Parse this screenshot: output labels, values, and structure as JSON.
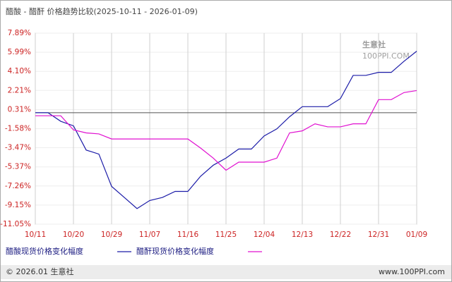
{
  "chart_data": {
    "type": "line",
    "title": "醋酸 - 醋酐 价格趋势比较(2025-10-11 - 2026-01-09)",
    "categories": [
      "10/11",
      null,
      null,
      "10/20",
      null,
      null,
      "10/29",
      null,
      null,
      "11/07",
      null,
      null,
      "11/16",
      null,
      null,
      "11/25",
      null,
      null,
      "12/04",
      null,
      null,
      "12/13",
      null,
      null,
      "12/22",
      null,
      null,
      "12/31",
      null,
      null,
      "01/09"
    ],
    "series": [
      {
        "name": "醋酸现货价格变化幅度",
        "color": "#1c1ca8",
        "values": [
          0,
          0,
          -0.85,
          -1.3,
          -3.7,
          -4.1,
          -7.3,
          -8.4,
          -9.5,
          -8.7,
          -8.4,
          -7.8,
          -7.8,
          -6.3,
          -5.2,
          -4.5,
          -3.6,
          -3.6,
          -2.3,
          -1.6,
          -0.4,
          0.6,
          0.6,
          0.6,
          1.4,
          3.7,
          3.7,
          4.0,
          4.0,
          5.1,
          6.1
        ]
      },
      {
        "name": "醋酐现货价格变化幅度",
        "color": "#e010d0",
        "values": [
          -0.3,
          -0.3,
          -0.3,
          -1.7,
          -2.0,
          -2.1,
          -2.6,
          -2.6,
          -2.6,
          -2.6,
          -2.6,
          -2.6,
          -2.6,
          -3.5,
          -4.5,
          -5.7,
          -4.9,
          -4.9,
          -4.9,
          -4.5,
          -2.0,
          -1.8,
          -1.1,
          -1.4,
          -1.4,
          -1.1,
          -1.1,
          1.3,
          1.3,
          2.0,
          2.2
        ]
      }
    ],
    "ylim": [
      -11.05,
      7.89
    ],
    "yticks": [
      {
        "value": 7.89,
        "label": "7.89%"
      },
      {
        "value": 5.99,
        "label": "5.99%"
      },
      {
        "value": 4.1,
        "label": "4.10%"
      },
      {
        "value": 2.21,
        "label": "2.21%"
      },
      {
        "value": 0.31,
        "label": "0.31%"
      },
      {
        "value": -1.58,
        "label": "-1.58%"
      },
      {
        "value": -3.47,
        "label": "-3.47%"
      },
      {
        "value": -5.37,
        "label": "-5.37%"
      },
      {
        "value": -7.26,
        "label": "-7.26%"
      },
      {
        "value": -9.15,
        "label": "-9.15%"
      },
      {
        "value": -11.05,
        "label": "-11.05%"
      }
    ],
    "watermark": [
      "生意社",
      "100PPI.COM"
    ],
    "footer": {
      "left": "© 2026.01 生意社",
      "right": "www.100PPI.com"
    }
  }
}
